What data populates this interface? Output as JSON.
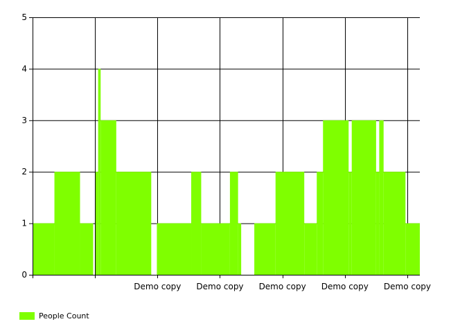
{
  "chart_data": {
    "type": "area",
    "ylim": [
      0,
      5
    ],
    "yticks": [
      0,
      1,
      2,
      3,
      4,
      5
    ],
    "xlim": [
      0,
      620
    ],
    "x_tick_labels": [
      {
        "x": 200,
        "label": "Demo copy"
      },
      {
        "x": 300,
        "label": "Demo copy"
      },
      {
        "x": 400,
        "label": "Demo copy"
      },
      {
        "x": 500,
        "label": "Demo copy"
      },
      {
        "x": 600,
        "label": "Demo copy"
      }
    ],
    "grid": true,
    "legend_position": "bottom-left",
    "series": [
      {
        "name": "People Count",
        "color": "#7FFF00",
        "steps": [
          {
            "x0": 0,
            "x1": 35,
            "y": 1
          },
          {
            "x0": 35,
            "x1": 76,
            "y": 2
          },
          {
            "x0": 76,
            "x1": 97,
            "y": 1
          },
          {
            "x0": 97,
            "x1": 99,
            "y": 0
          },
          {
            "x0": 101,
            "x1": 105,
            "y": 2
          },
          {
            "x0": 105,
            "x1": 109,
            "y": 4
          },
          {
            "x0": 109,
            "x1": 134,
            "y": 3
          },
          {
            "x0": 134,
            "x1": 190,
            "y": 2
          },
          {
            "x0": 190,
            "x1": 196,
            "y": 0
          },
          {
            "x0": 199,
            "x1": 254,
            "y": 1
          },
          {
            "x0": 254,
            "x1": 270,
            "y": 2
          },
          {
            "x0": 270,
            "x1": 316,
            "y": 1
          },
          {
            "x0": 316,
            "x1": 329,
            "y": 2
          },
          {
            "x0": 329,
            "x1": 334,
            "y": 1
          },
          {
            "x0": 334,
            "x1": 355,
            "y": 0
          },
          {
            "x0": 355,
            "x1": 389,
            "y": 1
          },
          {
            "x0": 389,
            "x1": 435,
            "y": 2
          },
          {
            "x0": 435,
            "x1": 455,
            "y": 1
          },
          {
            "x0": 455,
            "x1": 465,
            "y": 2
          },
          {
            "x0": 465,
            "x1": 506,
            "y": 3
          },
          {
            "x0": 506,
            "x1": 511,
            "y": 2
          },
          {
            "x0": 511,
            "x1": 550,
            "y": 3
          },
          {
            "x0": 550,
            "x1": 555,
            "y": 2
          },
          {
            "x0": 555,
            "x1": 562,
            "y": 3
          },
          {
            "x0": 562,
            "x1": 597,
            "y": 2
          },
          {
            "x0": 597,
            "x1": 620,
            "y": 1
          }
        ]
      }
    ]
  },
  "legend": {
    "label": "People Count",
    "color": "#7FFF00"
  }
}
